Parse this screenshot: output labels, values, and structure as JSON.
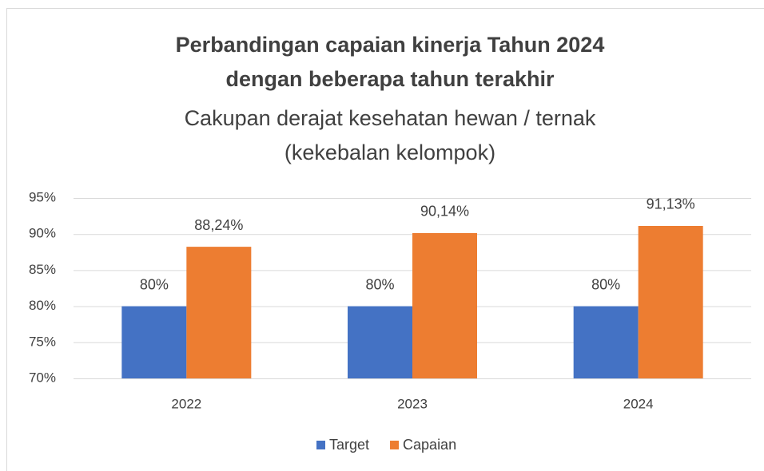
{
  "chart_data": {
    "type": "bar",
    "title": [
      "Perbandingan capaian kinerja Tahun 2024",
      "dengan beberapa tahun terakhir"
    ],
    "subtitle": [
      "Cakupan derajat kesehatan hewan / ternak",
      "(kekebalan kelompok)"
    ],
    "categories": [
      "2022",
      "2023",
      "2024"
    ],
    "series": [
      {
        "name": "Target",
        "color": "#4472c4",
        "values": [
          80,
          80,
          80
        ],
        "value_labels": [
          "80%",
          "80%",
          "80%"
        ]
      },
      {
        "name": "Capaian",
        "color": "#ed7d31",
        "values": [
          88.24,
          90.14,
          91.13
        ],
        "value_labels": [
          "88,24%",
          "90,14%",
          "91,13%"
        ]
      }
    ],
    "ylim": [
      70,
      95
    ],
    "yticks": [
      {
        "value": 70,
        "label": "70%"
      },
      {
        "value": 75,
        "label": "75%"
      },
      {
        "value": 80,
        "label": "80%"
      },
      {
        "value": 85,
        "label": "85%"
      },
      {
        "value": 90,
        "label": "90%"
      },
      {
        "value": 95,
        "label": "95%"
      }
    ],
    "grid": true,
    "legend": "bottom"
  }
}
